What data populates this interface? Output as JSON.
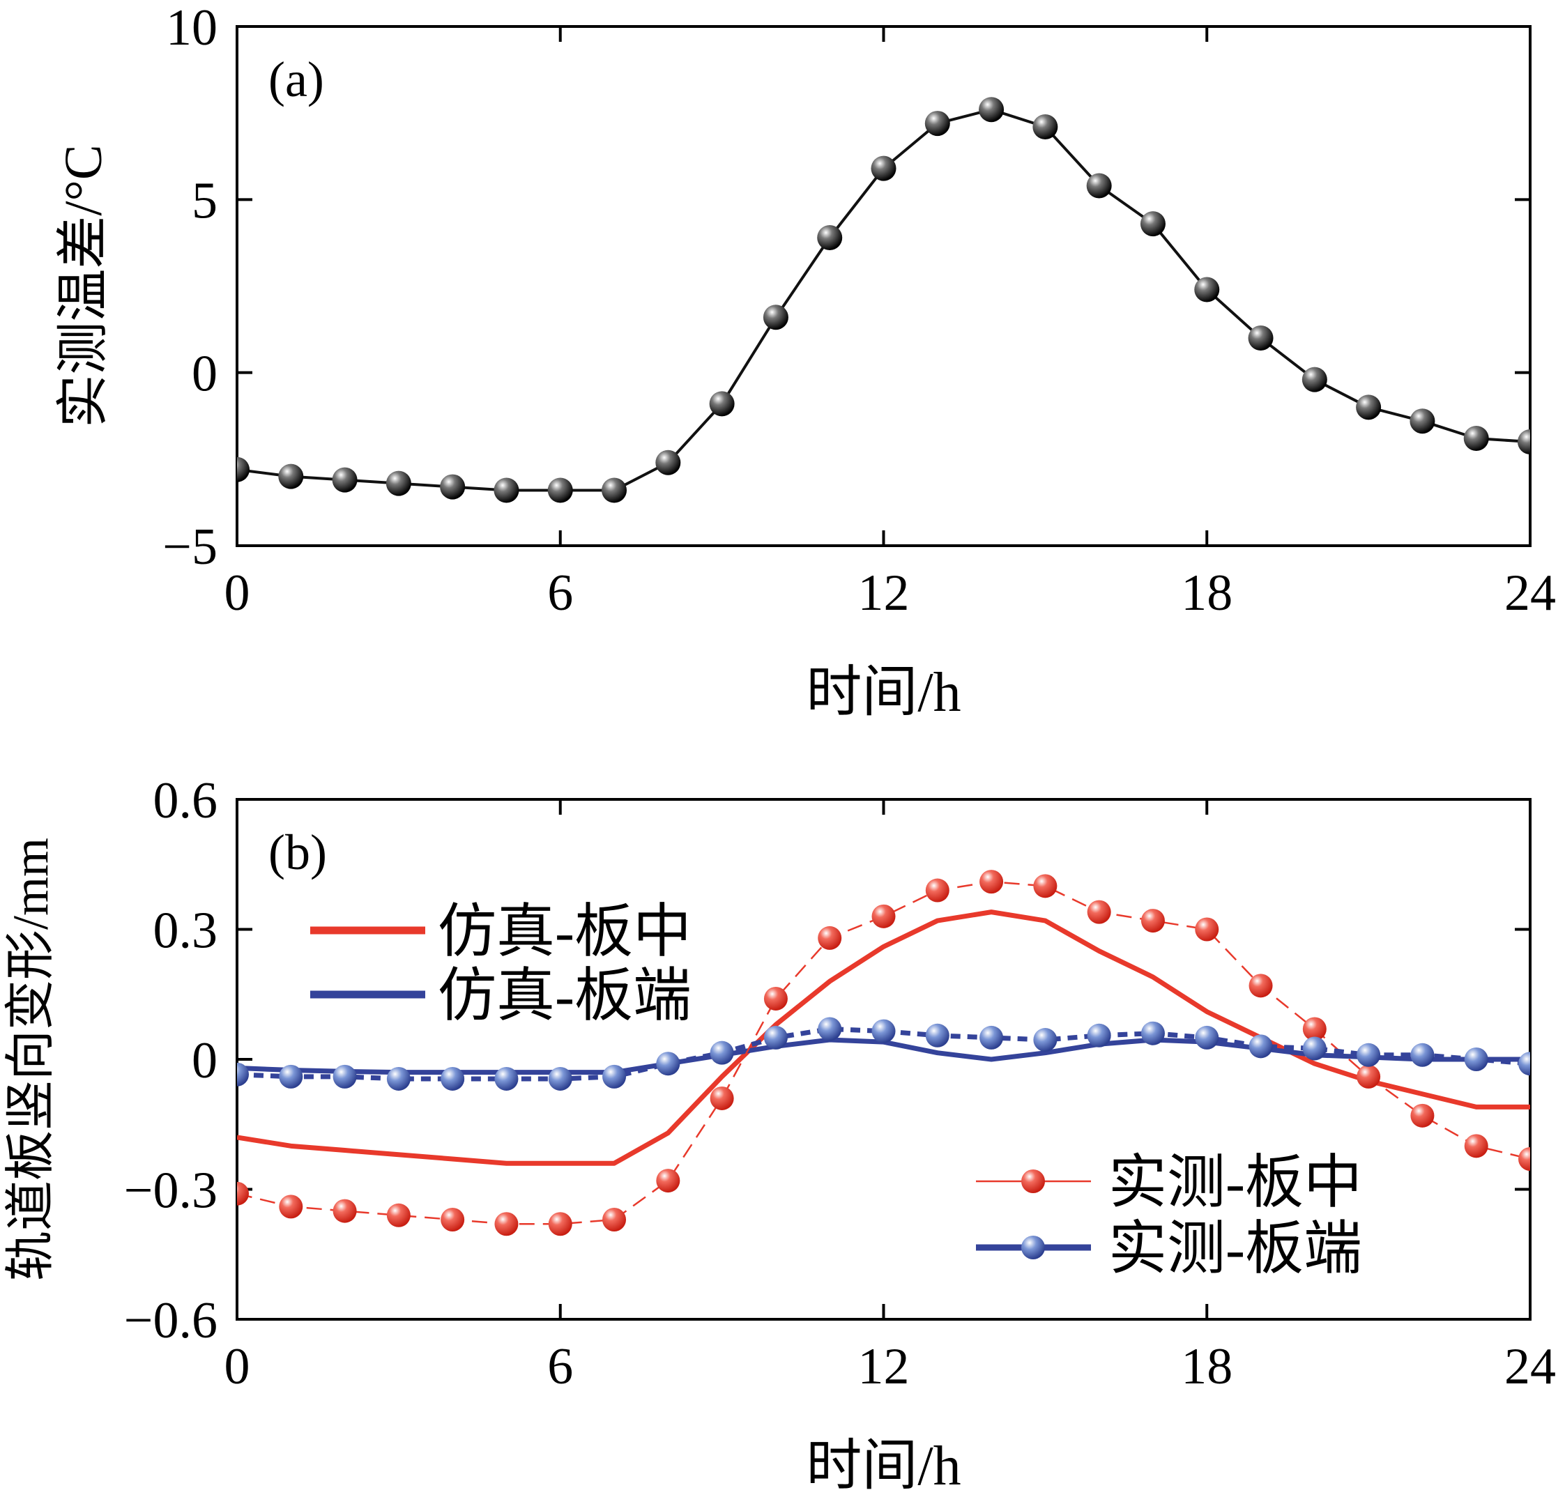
{
  "chart_data": [
    {
      "type": "line",
      "panel_label": "(a)",
      "xlabel": "时间/h",
      "ylabel": "实测温差/°C",
      "xlim": [
        0,
        24
      ],
      "ylim": [
        -5,
        10
      ],
      "xticks": [
        "0",
        "6",
        "12",
        "18",
        "24"
      ],
      "yticks": [
        "−5",
        "0",
        "5",
        "10"
      ],
      "x": [
        0,
        1,
        2,
        3,
        4,
        5,
        6,
        7,
        8,
        9,
        10,
        11,
        12,
        13,
        14,
        15,
        16,
        17,
        18,
        19,
        20,
        21,
        22,
        23,
        24
      ],
      "series": [
        {
          "name": "实测温差",
          "color": "#1a1a1a",
          "values": [
            -2.8,
            -3.0,
            -3.1,
            -3.2,
            -3.3,
            -3.4,
            -3.4,
            -3.4,
            -2.6,
            -0.9,
            1.6,
            3.9,
            5.9,
            7.2,
            7.6,
            7.1,
            5.4,
            4.3,
            2.4,
            1.0,
            -0.2,
            -1.0,
            -1.4,
            -1.9,
            -2.0
          ]
        }
      ]
    },
    {
      "type": "line",
      "panel_label": "(b)",
      "xlabel": "时间/h",
      "ylabel": "轨道板竖向变形/mm",
      "xlim": [
        0,
        24
      ],
      "ylim": [
        -0.6,
        0.6
      ],
      "xticks": [
        "0",
        "6",
        "12",
        "18",
        "24"
      ],
      "yticks": [
        "−0.6",
        "−0.3",
        "0",
        "0.3",
        "0.6"
      ],
      "x": [
        0,
        1,
        2,
        3,
        4,
        5,
        6,
        7,
        8,
        9,
        10,
        11,
        12,
        13,
        14,
        15,
        16,
        17,
        18,
        19,
        20,
        21,
        22,
        23,
        24
      ],
      "series": [
        {
          "name": "仿真-板中",
          "color": "#e8392b",
          "style": "line",
          "values": [
            -0.18,
            -0.2,
            -0.21,
            -0.22,
            -0.23,
            -0.24,
            -0.24,
            -0.24,
            -0.17,
            -0.04,
            0.08,
            0.18,
            0.26,
            0.32,
            0.34,
            0.32,
            0.25,
            0.19,
            0.11,
            0.05,
            -0.01,
            -0.05,
            -0.08,
            -0.11,
            -0.11
          ]
        },
        {
          "name": "仿真-板端",
          "color": "#34439a",
          "style": "line",
          "values": [
            -0.02,
            -0.025,
            -0.028,
            -0.03,
            -0.03,
            -0.03,
            -0.03,
            -0.03,
            -0.01,
            0.01,
            0.03,
            0.045,
            0.04,
            0.015,
            0.0,
            0.015,
            0.035,
            0.045,
            0.04,
            0.025,
            0.01,
            0.005,
            0.0,
            0.0,
            0.0
          ]
        },
        {
          "name": "实测-板中",
          "color": "#e8392b",
          "style": "dashed-markers",
          "values": [
            -0.31,
            -0.34,
            -0.35,
            -0.36,
            -0.37,
            -0.38,
            -0.38,
            -0.37,
            -0.28,
            -0.09,
            0.14,
            0.28,
            0.33,
            0.39,
            0.41,
            0.4,
            0.34,
            0.32,
            0.3,
            0.17,
            0.07,
            -0.04,
            -0.13,
            -0.2,
            -0.23
          ]
        },
        {
          "name": "实测-板端",
          "color": "#34439a",
          "style": "dashed-markers",
          "values": [
            -0.035,
            -0.04,
            -0.04,
            -0.045,
            -0.045,
            -0.045,
            -0.045,
            -0.04,
            -0.01,
            0.015,
            0.05,
            0.07,
            0.065,
            0.055,
            0.05,
            0.045,
            0.055,
            0.06,
            0.05,
            0.03,
            0.025,
            0.01,
            0.01,
            0.0,
            -0.01
          ]
        }
      ],
      "legend": {
        "upper_left": [
          "仿真-板中",
          "仿真-板端"
        ],
        "lower_right": [
          "实测-板中",
          "实测-板端"
        ]
      }
    }
  ]
}
